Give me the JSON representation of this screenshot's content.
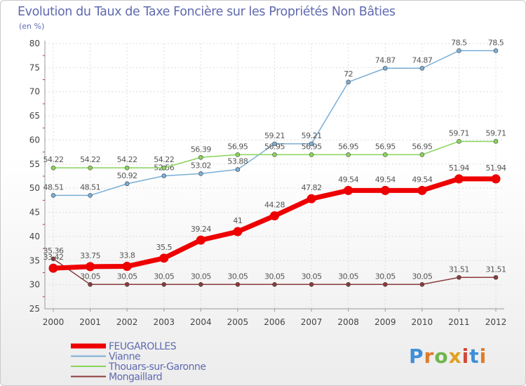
{
  "header": {
    "title": "Evolution du Taux de Taxe Foncière sur les Propriétés Non Bâties",
    "unit": "(en %)"
  },
  "logo": {
    "text": "Proxiti",
    "colors": [
      "#3f8fd8",
      "#e07a2a",
      "#6fb64a",
      "#e0a020",
      "#d0483a"
    ]
  },
  "chart_data": {
    "type": "line",
    "title": "Evolution du Taux de Taxe Foncière sur les Propriétés Non Bâties",
    "ylabel": "(en %)",
    "x": [
      "2000",
      "2001",
      "2002",
      "2003",
      "2004",
      "2005",
      "2006",
      "2007",
      "2008",
      "2009",
      "2010",
      "2011",
      "2012"
    ],
    "ylim": [
      25,
      80
    ],
    "yticks": [
      25,
      30,
      35,
      40,
      45,
      50,
      55,
      60,
      65,
      70,
      75,
      80
    ],
    "grid": true,
    "legend_position": "bottom-left",
    "series": [
      {
        "name": "FEUGAROLLES",
        "color": "#ee0000",
        "emphasis": true,
        "values": [
          33.42,
          33.75,
          33.8,
          35.5,
          39.24,
          41,
          44.28,
          47.82,
          49.54,
          49.54,
          49.54,
          51.94,
          51.94
        ],
        "labels": [
          "33.42",
          "33.75",
          "33.8",
          "35.5",
          "39.24",
          "41",
          "44.28",
          "47.82",
          "49.54",
          "49.54",
          "49.54",
          "51.94",
          "51.94"
        ]
      },
      {
        "name": "Vianne",
        "color": "#7aaed6",
        "emphasis": false,
        "values": [
          48.51,
          48.51,
          50.92,
          52.56,
          53.02,
          53.88,
          59.21,
          59.21,
          72,
          74.87,
          74.87,
          78.5,
          78.5
        ],
        "labels": [
          "48.51",
          "48.51",
          "50.92",
          "52.56",
          "53.02",
          "53.88",
          "59.21",
          "59.21",
          "72",
          "74.87",
          "74.87",
          "78.5",
          "78.5"
        ]
      },
      {
        "name": "Thouars-sur-Garonne",
        "color": "#88d45a",
        "emphasis": false,
        "values": [
          54.22,
          54.22,
          54.22,
          54.22,
          56.39,
          56.95,
          56.95,
          56.95,
          56.95,
          56.95,
          56.95,
          59.71,
          59.71
        ],
        "labels": [
          "54.22",
          "54.22",
          "54.22",
          "54.22",
          "56.39",
          "56.95",
          "56.95",
          "56.95",
          "56.95",
          "56.95",
          "56.95",
          "59.71",
          "59.71"
        ]
      },
      {
        "name": "Mongaillard",
        "color": "#8a3a3a",
        "emphasis": false,
        "values": [
          35.36,
          30.05,
          30.05,
          30.05,
          30.05,
          30.05,
          30.05,
          30.05,
          30.05,
          30.05,
          30.05,
          31.51,
          31.51
        ],
        "labels": [
          "35.36",
          "30.05",
          "30.05",
          "30.05",
          "30.05",
          "30.05",
          "30.05",
          "30.05",
          "30.05",
          "30.05",
          "30.05",
          "31.51",
          "31.51"
        ]
      }
    ]
  }
}
